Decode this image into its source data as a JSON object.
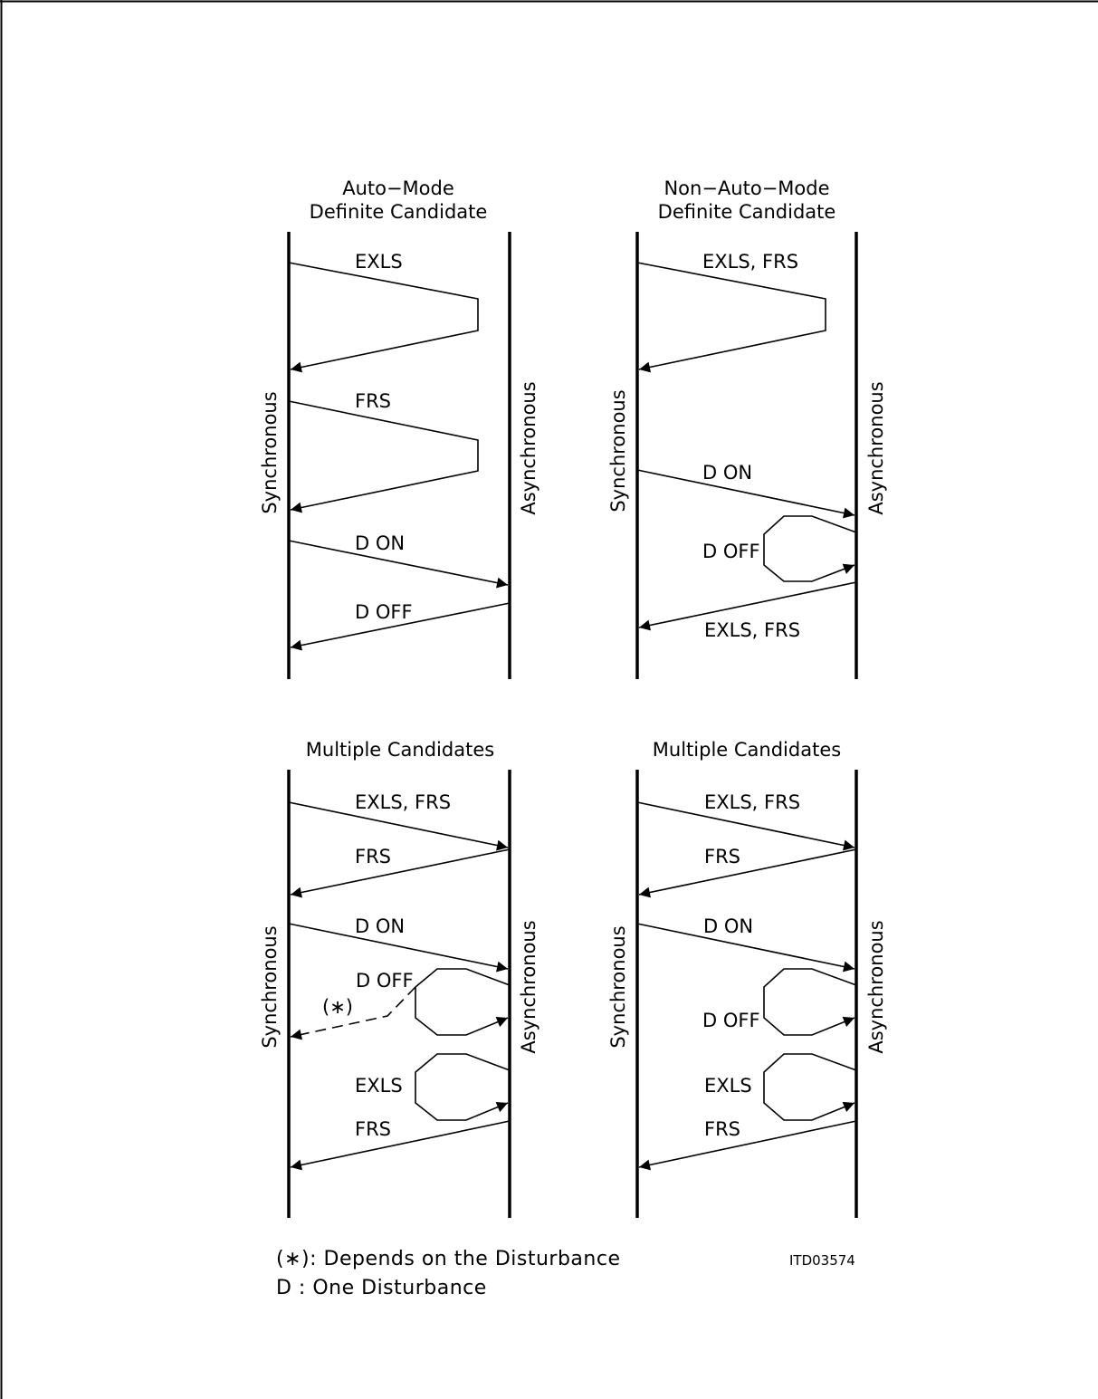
{
  "colors": {
    "ink": "#000000",
    "background": "#ffffff"
  },
  "diagrams": [
    {
      "title_line1": "Auto−Mode",
      "title_line2": "Definite  Candidate",
      "left_label": "Synchronous",
      "right_label": "Asynchronous",
      "messages": [
        "EXLS",
        "FRS",
        "D ON",
        "D OFF"
      ]
    },
    {
      "title_line1": "Non−Auto−Mode",
      "title_line2": "Definite  Candidate",
      "left_label": "Synchronous",
      "right_label": "Asynchronous",
      "messages": [
        "EXLS, FRS",
        "D ON",
        "D OFF",
        "EXLS, FRS"
      ]
    },
    {
      "title_line1": "Multiple  Candidates",
      "left_label": "Synchronous",
      "right_label": "Asynchronous",
      "messages": [
        "EXLS, FRS",
        "FRS",
        "D ON",
        "D OFF",
        "(∗)",
        "EXLS",
        "FRS"
      ]
    },
    {
      "title_line1": "Multiple  Candidates",
      "left_label": "Synchronous",
      "right_label": "Asynchronous",
      "messages": [
        "EXLS, FRS",
        "FRS",
        "D  ON",
        "D OFF",
        "EXLS",
        "FRS"
      ]
    }
  ],
  "legend": {
    "line1": "(∗): Depends  on  the  Disturbance",
    "line2": "D   : One  Disturbance"
  },
  "figure_ref": "ITD03574"
}
